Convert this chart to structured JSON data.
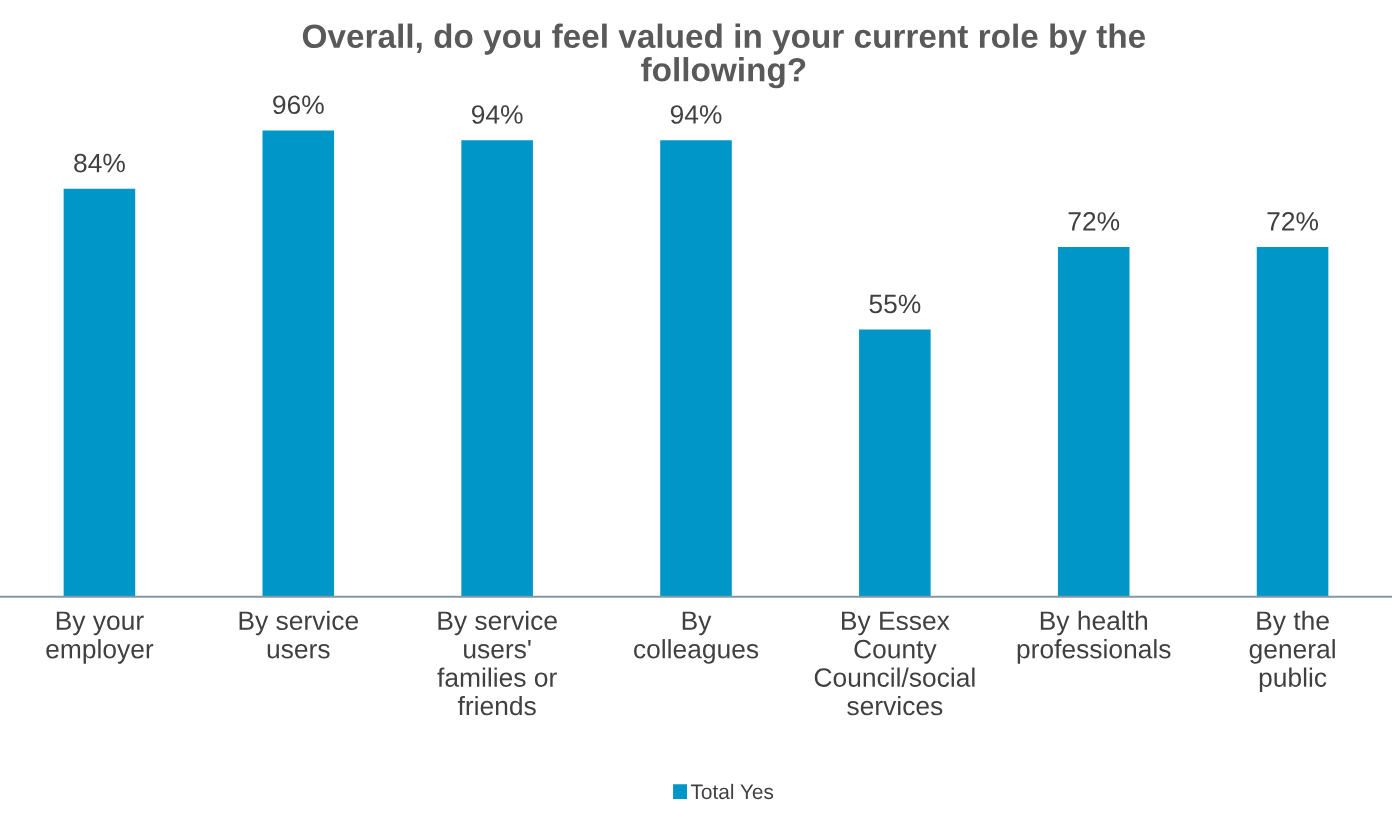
{
  "chart_data": {
    "type": "bar",
    "title": "Overall, do you feel valued in your current role by the\nfollowing?",
    "categories": [
      "By your\nemployer",
      "By service\nusers",
      "By service\nusers'\nfamilies or\nfriends",
      "By\ncolleagues",
      "By Essex\nCounty\nCouncil/social\nservices",
      "By health\nprofessionals",
      "By the\ngeneral\npublic"
    ],
    "series": [
      {
        "name": "Total Yes",
        "color": "#0096c8",
        "values": [
          84,
          96,
          94,
          94,
          55,
          72,
          72
        ],
        "value_labels": [
          "84%",
          "96%",
          "94%",
          "94%",
          "55%",
          "72%",
          "72%"
        ]
      }
    ],
    "tick_labels": "x",
    "grid": false,
    "legend": "bottom"
  }
}
